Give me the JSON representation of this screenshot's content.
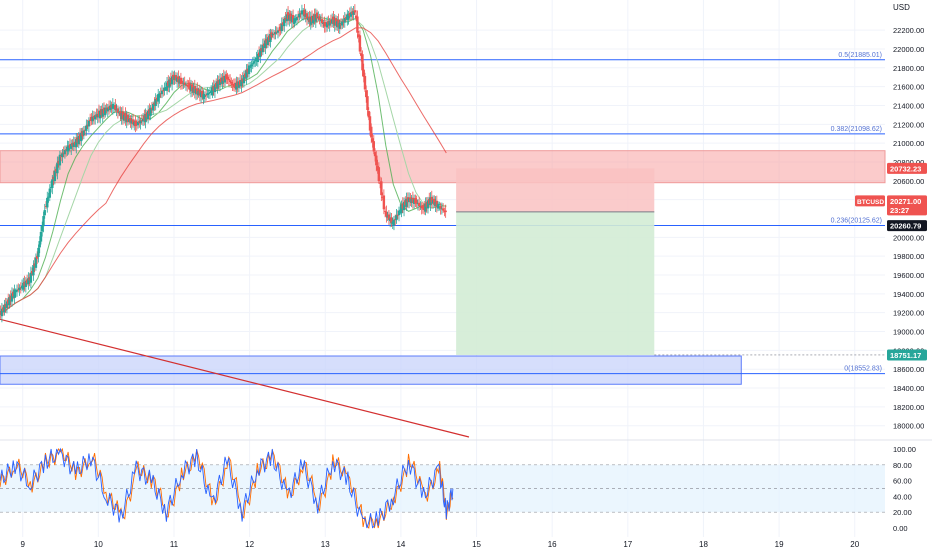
{
  "currency_label": "USD",
  "colors": {
    "up": "#26a69a",
    "down": "#ef5350",
    "fib_line": "#2962ff",
    "red_zone": "#f7a1a1",
    "blue_zone": "#c8d3fb",
    "stop_zone": "#f9c2c2",
    "target_zone": "#d3ecd5",
    "stoch_k": "#2962ff",
    "stoch_d": "#ff6d00",
    "ma_short": "#4caf50",
    "ma_long": "#e53935"
  },
  "chart_data": {
    "type": "candlestick",
    "title": "",
    "symbol": "BTCUSD",
    "y_ticks": [
      "22200.00",
      "22000.00",
      "21800.00",
      "21600.00",
      "21400.00",
      "21200.00",
      "21000.00",
      "20800.00",
      "20600.00",
      "20400.00",
      "20000.00",
      "19800.00",
      "19600.00",
      "19400.00",
      "19200.00",
      "19000.00",
      "18800.00",
      "18600.00",
      "18400.00",
      "18200.00",
      "18000.00"
    ],
    "y_range": [
      17880,
      22520
    ],
    "x_ticks": [
      "9",
      "10",
      "11",
      "12",
      "13",
      "14",
      "15",
      "16",
      "17",
      "18",
      "19",
      "20"
    ],
    "x_range_days": [
      8.7,
      20.4
    ],
    "price_series": [
      [
        8.7,
        19180
      ],
      [
        8.8,
        19300
      ],
      [
        8.9,
        19420
      ],
      [
        9.0,
        19480
      ],
      [
        9.1,
        19560
      ],
      [
        9.2,
        19800
      ],
      [
        9.3,
        20300
      ],
      [
        9.4,
        20600
      ],
      [
        9.5,
        20850
      ],
      [
        9.6,
        20950
      ],
      [
        9.7,
        21000
      ],
      [
        9.8,
        21100
      ],
      [
        9.9,
        21250
      ],
      [
        10.0,
        21300
      ],
      [
        10.1,
        21350
      ],
      [
        10.2,
        21400
      ],
      [
        10.3,
        21300
      ],
      [
        10.4,
        21250
      ],
      [
        10.5,
        21200
      ],
      [
        10.6,
        21250
      ],
      [
        10.7,
        21350
      ],
      [
        10.8,
        21500
      ],
      [
        10.9,
        21600
      ],
      [
        11.0,
        21700
      ],
      [
        11.1,
        21650
      ],
      [
        11.2,
        21600
      ],
      [
        11.3,
        21550
      ],
      [
        11.4,
        21500
      ],
      [
        11.5,
        21550
      ],
      [
        11.6,
        21650
      ],
      [
        11.7,
        21700
      ],
      [
        11.8,
        21600
      ],
      [
        11.9,
        21650
      ],
      [
        12.0,
        21800
      ],
      [
        12.1,
        21900
      ],
      [
        12.2,
        22050
      ],
      [
        12.3,
        22150
      ],
      [
        12.4,
        22200
      ],
      [
        12.5,
        22350
      ],
      [
        12.6,
        22300
      ],
      [
        12.7,
        22400
      ],
      [
        12.8,
        22300
      ],
      [
        12.9,
        22350
      ],
      [
        13.0,
        22250
      ],
      [
        13.1,
        22300
      ],
      [
        13.2,
        22250
      ],
      [
        13.3,
        22350
      ],
      [
        13.4,
        22400
      ],
      [
        13.5,
        21800
      ],
      [
        13.6,
        21150
      ],
      [
        13.7,
        20700
      ],
      [
        13.8,
        20250
      ],
      [
        13.9,
        20150
      ],
      [
        14.0,
        20300
      ],
      [
        14.1,
        20400
      ],
      [
        14.2,
        20380
      ],
      [
        14.3,
        20300
      ],
      [
        14.4,
        20400
      ],
      [
        14.5,
        20330
      ],
      [
        14.6,
        20270
      ]
    ],
    "stoch_series": [
      [
        8.7,
        60
      ],
      [
        8.9,
        80
      ],
      [
        9.1,
        55
      ],
      [
        9.3,
        85
      ],
      [
        9.5,
        95
      ],
      [
        9.7,
        70
      ],
      [
        9.9,
        90
      ],
      [
        10.1,
        40
      ],
      [
        10.3,
        15
      ],
      [
        10.5,
        75
      ],
      [
        10.7,
        60
      ],
      [
        10.9,
        20
      ],
      [
        11.1,
        70
      ],
      [
        11.3,
        90
      ],
      [
        11.5,
        30
      ],
      [
        11.7,
        85
      ],
      [
        11.9,
        20
      ],
      [
        12.1,
        75
      ],
      [
        12.3,
        90
      ],
      [
        12.5,
        40
      ],
      [
        12.7,
        80
      ],
      [
        12.9,
        30
      ],
      [
        13.1,
        85
      ],
      [
        13.3,
        60
      ],
      [
        13.5,
        5
      ],
      [
        13.7,
        10
      ],
      [
        13.9,
        40
      ],
      [
        14.1,
        85
      ],
      [
        14.3,
        40
      ],
      [
        14.5,
        75
      ],
      [
        14.6,
        20
      ],
      [
        14.7,
        55
      ]
    ],
    "fib_levels": [
      {
        "label": "0.5(21885.01)",
        "value": 21885.01
      },
      {
        "label": "0.382(21098.62)",
        "value": 21098.62
      },
      {
        "label": "0.236(20125.62)",
        "value": 20125.62
      },
      {
        "label": "0(18552.83)",
        "value": 18552.83
      }
    ],
    "zones": [
      {
        "name": "resistance-zone",
        "from": 20580,
        "to": 20920
      },
      {
        "name": "support-zone",
        "from": 18440,
        "to": 18740
      }
    ],
    "position": {
      "entry": 20271,
      "stop": 20732.23,
      "target": 18751.17
    },
    "price_tags": {
      "stop": "20732.23",
      "symbol": "BTCUSD",
      "current": "20271.00",
      "countdown": "23:27",
      "secondary": "20260.79",
      "target": "18751.17"
    },
    "stoch_ticks": [
      "100.00",
      "80.00",
      "60.00",
      "40.00",
      "20.00",
      "0.00"
    ],
    "stoch_range": [
      0,
      100
    ]
  }
}
